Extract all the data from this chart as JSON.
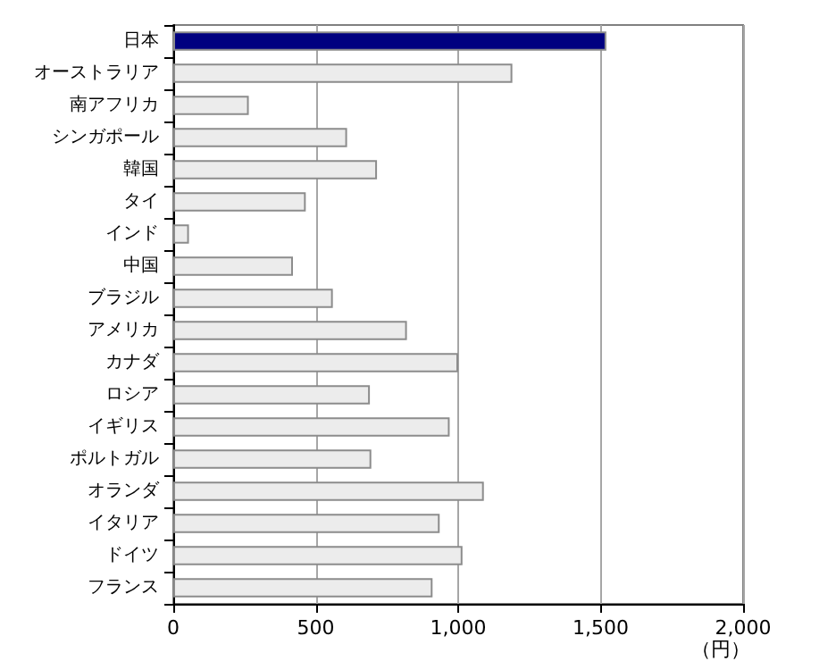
{
  "chart_data": {
    "type": "bar",
    "orientation": "horizontal",
    "xlabel": "（円）",
    "categories": [
      "日本",
      "オーストラリア",
      "南アフリカ",
      "シンガポール",
      "韓国",
      "タイ",
      "インド",
      "中国",
      "ブラジル",
      "アメリカ",
      "カナダ",
      "ロシア",
      "イギリス",
      "ポルトガル",
      "オランダ",
      "イタリア",
      "ドイツ",
      "フランス"
    ],
    "values": [
      1520,
      1190,
      265,
      610,
      715,
      465,
      55,
      420,
      560,
      820,
      1000,
      690,
      970,
      695,
      1090,
      935,
      1015,
      910
    ],
    "colors": [
      "#000080",
      "#ececec",
      "#ececec",
      "#ececec",
      "#ececec",
      "#ececec",
      "#ececec",
      "#ececec",
      "#ececec",
      "#ececec",
      "#ececec",
      "#ececec",
      "#ececec",
      "#ececec",
      "#ececec",
      "#ececec",
      "#ececec",
      "#ececec"
    ],
    "xlim": [
      0,
      2000
    ],
    "xticks": [
      0,
      500,
      {
        "value": 1000,
        "label": "1,000"
      },
      {
        "value": 1500,
        "label": "1,500"
      },
      {
        "value": 2000,
        "label": "2,000"
      }
    ],
    "grid": "x"
  }
}
